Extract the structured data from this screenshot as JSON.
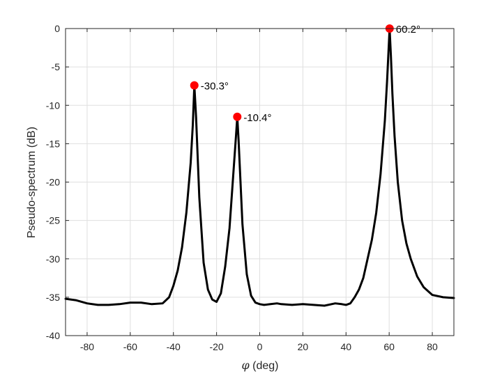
{
  "chart_data": {
    "type": "line",
    "xlabel_symbol": "φ",
    "xlabel_unit": "(deg)",
    "ylabel": "Pseudo-spectrum (dB)",
    "xlim": [
      -90,
      90
    ],
    "ylim": [
      -40,
      0
    ],
    "xticks": [
      -80,
      -60,
      -40,
      -20,
      0,
      20,
      40,
      60,
      80
    ],
    "yticks": [
      0,
      -5,
      -10,
      -15,
      -20,
      -25,
      -30,
      -35,
      -40
    ],
    "grid": true,
    "series": [
      {
        "name": "pseudo-spectrum",
        "color": "#000000",
        "x": [
          -90,
          -85,
          -80,
          -75,
          -70,
          -65,
          -60,
          -55,
          -50,
          -45,
          -42,
          -40,
          -38,
          -36,
          -34,
          -32,
          -31,
          -30.3,
          -29.5,
          -28,
          -26,
          -24,
          -22,
          -20,
          -18,
          -16,
          -14,
          -12,
          -11,
          -10.4,
          -9.8,
          -8,
          -6,
          -4,
          -2,
          0,
          2,
          5,
          8,
          10,
          15,
          20,
          25,
          30,
          35,
          38,
          40,
          42,
          44,
          46,
          48,
          50,
          52,
          54,
          56,
          58,
          59,
          59.6,
          60.2,
          60.8,
          61.5,
          62.5,
          64,
          66,
          68,
          70,
          73,
          76,
          80,
          85,
          90
        ],
        "y": [
          -35.2,
          -35.4,
          -35.8,
          -36.0,
          -36.0,
          -35.9,
          -35.7,
          -35.7,
          -35.9,
          -35.8,
          -35.0,
          -33.5,
          -31.5,
          -28.5,
          -24.0,
          -17.5,
          -12.5,
          -7.4,
          -11.5,
          -22.0,
          -30.5,
          -34.0,
          -35.3,
          -35.6,
          -34.5,
          -31.0,
          -26.0,
          -18.0,
          -14.0,
          -11.5,
          -14.5,
          -25.5,
          -32.0,
          -34.8,
          -35.7,
          -35.9,
          -36.0,
          -35.9,
          -35.8,
          -35.9,
          -36.0,
          -35.9,
          -36.0,
          -36.1,
          -35.8,
          -35.9,
          -36.0,
          -35.8,
          -35.0,
          -34.0,
          -32.5,
          -30.0,
          -27.5,
          -24.0,
          -19.0,
          -12.0,
          -7.0,
          -3.5,
          0.0,
          -3.5,
          -8.5,
          -14.0,
          -20.0,
          -25.0,
          -28.0,
          -30.0,
          -32.3,
          -33.7,
          -34.7,
          -35.0,
          -35.1
        ]
      }
    ],
    "peaks": [
      {
        "x": -30.3,
        "y": -7.4,
        "label": "-30.3°"
      },
      {
        "x": -10.4,
        "y": -11.5,
        "label": "-10.4°"
      },
      {
        "x": 60.2,
        "y": 0.0,
        "label": "60.2°"
      }
    ],
    "marker_color": "#ff0000"
  }
}
